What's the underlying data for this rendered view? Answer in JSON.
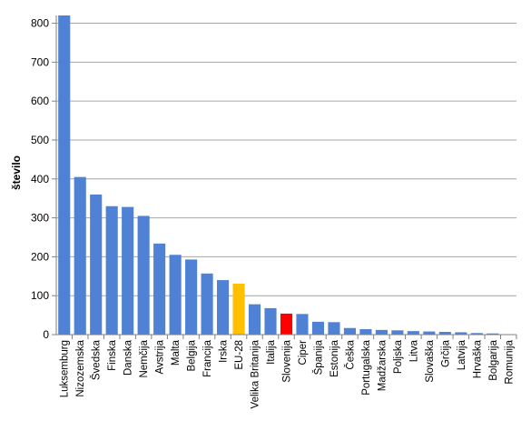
{
  "chart_data": {
    "type": "bar",
    "title": "",
    "xlabel": "",
    "ylabel": "število",
    "ylim": [
      0,
      820
    ],
    "yticks": [
      0,
      100,
      200,
      300,
      400,
      500,
      600,
      700,
      800
    ],
    "grid": true,
    "legend": "none",
    "colors": {
      "default": "#4f81d5",
      "eu28": "#ffc000",
      "slovenija": "#ff0000",
      "grid": "#a6a6a6",
      "axis": "#808080"
    },
    "categories": [
      "Luksemburg",
      "Nizozemska",
      "Švedska",
      "Finska",
      "Danska",
      "Nemčija",
      "Avstrija",
      "Malta",
      "Belgija",
      "Francija",
      "Irska",
      "EU-28",
      "Velika Britanija",
      "Italija",
      "Slovenija",
      "Ciper",
      "Španija",
      "Estonija",
      "Češka",
      "Portugalska",
      "Madžarska",
      "Poljska",
      "Litva",
      "Slovaška",
      "Grčija",
      "Latvija",
      "Hrvaška",
      "Bolgarija",
      "Romunija"
    ],
    "values": [
      820,
      405,
      360,
      330,
      328,
      305,
      234,
      205,
      193,
      157,
      140,
      131,
      78,
      68,
      54,
      53,
      33,
      32,
      17,
      14,
      12,
      11,
      9,
      8,
      7,
      6,
      4,
      3,
      1
    ],
    "highlight": {
      "EU-28": "eu28",
      "Slovenija": "slovenija"
    }
  }
}
